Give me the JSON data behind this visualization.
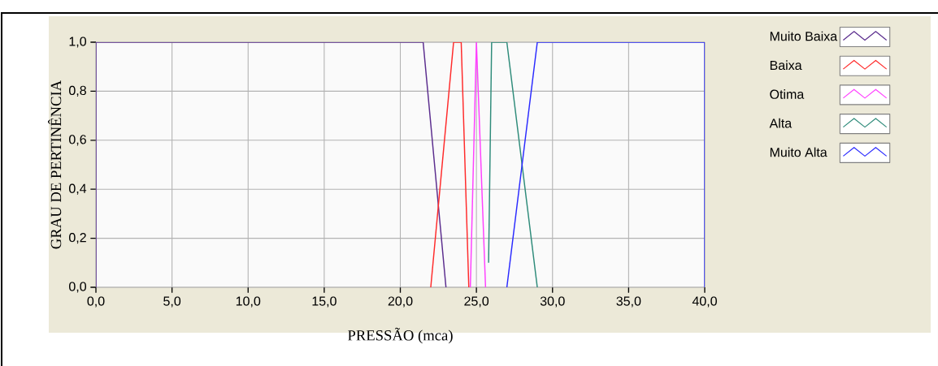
{
  "chart_data": {
    "type": "line",
    "xlabel": "PRESSÃO (mca)",
    "ylabel": "GRAU DE PERTINÊNCIA",
    "xlim": [
      0,
      40
    ],
    "ylim": [
      0,
      1
    ],
    "xticks": [
      {
        "value": 0,
        "label": "0,0"
      },
      {
        "value": 5,
        "label": "5,0"
      },
      {
        "value": 10,
        "label": "10,0"
      },
      {
        "value": 15,
        "label": "15,0"
      },
      {
        "value": 20,
        "label": "20,0"
      },
      {
        "value": 25,
        "label": "25,0"
      },
      {
        "value": 30,
        "label": "30,0"
      },
      {
        "value": 35,
        "label": "35,0"
      },
      {
        "value": 40,
        "label": "40,0"
      }
    ],
    "yticks": [
      {
        "value": 0,
        "label": "0,0"
      },
      {
        "value": 0.2,
        "label": "0,2"
      },
      {
        "value": 0.4,
        "label": "0,4"
      },
      {
        "value": 0.6,
        "label": "0,6"
      },
      {
        "value": 0.8,
        "label": "0,8"
      },
      {
        "value": 1,
        "label": "1,0"
      }
    ],
    "grid": true,
    "legend": "right",
    "marker": "none",
    "line_style": "solid",
    "series": [
      {
        "name": "Muito Baixa",
        "color": "#5b2d8e",
        "x": [
          0,
          0,
          21.5,
          23
        ],
        "values": [
          0,
          1,
          1,
          0
        ]
      },
      {
        "name": "Baixa",
        "color": "#ff2a2a",
        "x": [
          22,
          23.5,
          24,
          24.5
        ],
        "values": [
          0,
          1,
          1,
          0
        ]
      },
      {
        "name": "Otima",
        "color": "#ff40ff",
        "x": [
          24.6,
          25,
          25.6
        ],
        "values": [
          0,
          1,
          0
        ]
      },
      {
        "name": "Alta",
        "color": "#2e8b7a",
        "x": [
          25.8,
          26,
          27,
          29
        ],
        "values": [
          0.1,
          1,
          1,
          0
        ]
      },
      {
        "name": "Muito Alta",
        "color": "#2a2aff",
        "x": [
          27,
          29,
          40,
          40
        ],
        "values": [
          0,
          1,
          1,
          0
        ]
      }
    ]
  }
}
